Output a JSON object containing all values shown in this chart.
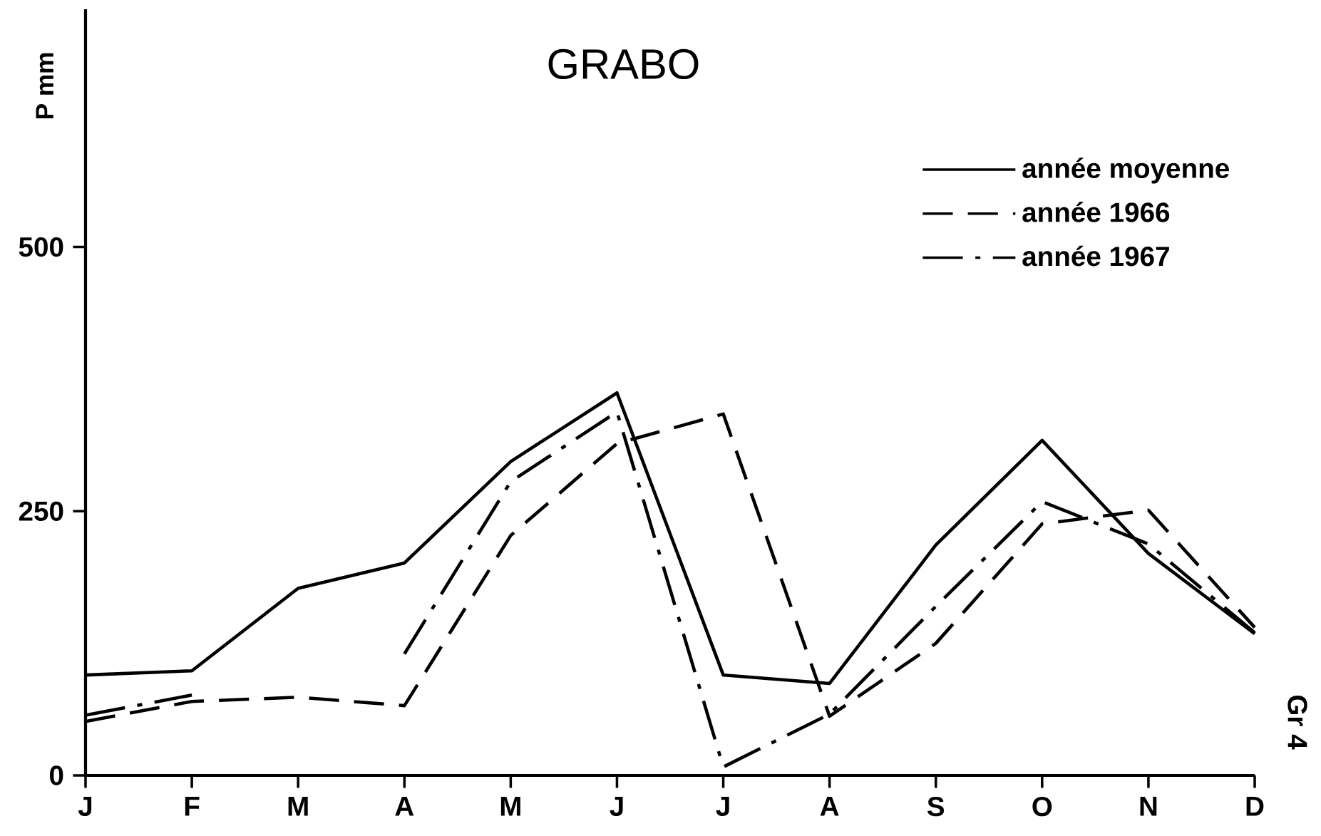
{
  "chart_data": {
    "type": "line",
    "title": "GRABO",
    "ylabel": "P mm",
    "categories": [
      "J",
      "F",
      "M",
      "A",
      "M",
      "J",
      "J",
      "A",
      "S",
      "O",
      "N",
      "D"
    ],
    "series": [
      {
        "name": "année moyenne",
        "color": "#000000",
        "line_style": "solid",
        "values": [
          95,
          99,
          177,
          201,
          297,
          362,
          95,
          87,
          218,
          317,
          210,
          134
        ]
      },
      {
        "name": "année 1966",
        "color": "#000000",
        "line_style": "dashed",
        "values": [
          51,
          70,
          74,
          66,
          227,
          314,
          342,
          56,
          125,
          238,
          251,
          140
        ]
      },
      {
        "name": "année 1967",
        "color": "#000000",
        "line_style": "dashdot",
        "values": [
          57,
          76,
          null,
          115,
          278,
          344,
          8,
          58,
          160,
          259,
          219,
          135
        ]
      }
    ],
    "ylim": [
      0,
      725
    ],
    "yticks": [
      0,
      250,
      500
    ],
    "grid": false,
    "legend": "top right",
    "marker": "none",
    "annotations": [
      "Gr 4"
    ]
  }
}
